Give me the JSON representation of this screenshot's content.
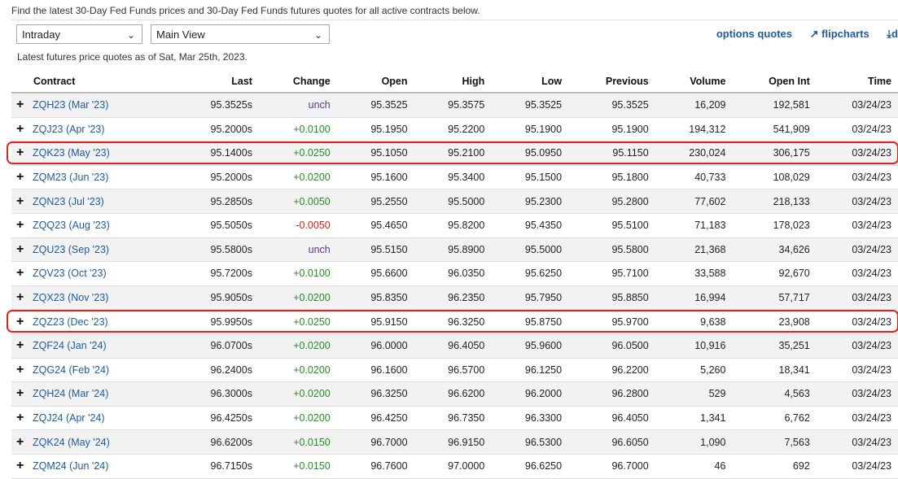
{
  "intro": "Find the latest 30-Day Fed Funds prices and 30-Day Fed Funds futures quotes for all active contracts below.",
  "filters": {
    "interval": "Intraday",
    "view": "Main View"
  },
  "links": {
    "options": "options quotes",
    "flipcharts": "flipcharts",
    "download": "d"
  },
  "asof": "Latest futures price quotes as of Sat, Mar 25th, 2023.",
  "columns": [
    "Contract",
    "Last",
    "Change",
    "Open",
    "High",
    "Low",
    "Previous",
    "Volume",
    "Open Int",
    "Time"
  ],
  "rows": [
    {
      "contract": "ZQH23 (Mar '23)",
      "last": "95.3525s",
      "change": "unch",
      "open": "95.3525",
      "high": "95.3575",
      "low": "95.3525",
      "previous": "95.3525",
      "volume": "16,209",
      "openint": "192,581",
      "time": "03/24/23"
    },
    {
      "contract": "ZQJ23 (Apr '23)",
      "last": "95.2000s",
      "change": "+0.0100",
      "open": "95.1950",
      "high": "95.2200",
      "low": "95.1900",
      "previous": "95.1900",
      "volume": "194,312",
      "openint": "541,909",
      "time": "03/24/23"
    },
    {
      "contract": "ZQK23 (May '23)",
      "last": "95.1400s",
      "change": "+0.0250",
      "open": "95.1050",
      "high": "95.2100",
      "low": "95.0950",
      "previous": "95.1150",
      "volume": "230,024",
      "openint": "306,175",
      "time": "03/24/23"
    },
    {
      "contract": "ZQM23 (Jun '23)",
      "last": "95.2000s",
      "change": "+0.0200",
      "open": "95.1600",
      "high": "95.3400",
      "low": "95.1500",
      "previous": "95.1800",
      "volume": "40,733",
      "openint": "108,029",
      "time": "03/24/23"
    },
    {
      "contract": "ZQN23 (Jul '23)",
      "last": "95.2850s",
      "change": "+0.0050",
      "open": "95.2550",
      "high": "95.5000",
      "low": "95.2300",
      "previous": "95.2800",
      "volume": "77,602",
      "openint": "218,133",
      "time": "03/24/23"
    },
    {
      "contract": "ZQQ23 (Aug '23)",
      "last": "95.5050s",
      "change": "-0.0050",
      "open": "95.4650",
      "high": "95.8200",
      "low": "95.4350",
      "previous": "95.5100",
      "volume": "71,183",
      "openint": "178,023",
      "time": "03/24/23"
    },
    {
      "contract": "ZQU23 (Sep '23)",
      "last": "95.5800s",
      "change": "unch",
      "open": "95.5150",
      "high": "95.8900",
      "low": "95.5000",
      "previous": "95.5800",
      "volume": "21,368",
      "openint": "34,626",
      "time": "03/24/23"
    },
    {
      "contract": "ZQV23 (Oct '23)",
      "last": "95.7200s",
      "change": "+0.0100",
      "open": "95.6600",
      "high": "96.0350",
      "low": "95.6250",
      "previous": "95.7100",
      "volume": "33,588",
      "openint": "92,670",
      "time": "03/24/23"
    },
    {
      "contract": "ZQX23 (Nov '23)",
      "last": "95.9050s",
      "change": "+0.0200",
      "open": "95.8350",
      "high": "96.2350",
      "low": "95.7950",
      "previous": "95.8850",
      "volume": "16,994",
      "openint": "57,717",
      "time": "03/24/23"
    },
    {
      "contract": "ZQZ23 (Dec '23)",
      "last": "95.9950s",
      "change": "+0.0250",
      "open": "95.9150",
      "high": "96.3250",
      "low": "95.8750",
      "previous": "95.9700",
      "volume": "9,638",
      "openint": "23,908",
      "time": "03/24/23"
    },
    {
      "contract": "ZQF24 (Jan '24)",
      "last": "96.0700s",
      "change": "+0.0200",
      "open": "96.0000",
      "high": "96.4050",
      "low": "95.9600",
      "previous": "96.0500",
      "volume": "10,916",
      "openint": "35,251",
      "time": "03/24/23"
    },
    {
      "contract": "ZQG24 (Feb '24)",
      "last": "96.2400s",
      "change": "+0.0200",
      "open": "96.1600",
      "high": "96.5700",
      "low": "96.1250",
      "previous": "96.2200",
      "volume": "5,260",
      "openint": "18,341",
      "time": "03/24/23"
    },
    {
      "contract": "ZQH24 (Mar '24)",
      "last": "96.3000s",
      "change": "+0.0200",
      "open": "96.3250",
      "high": "96.6200",
      "low": "96.2000",
      "previous": "96.2800",
      "volume": "529",
      "openint": "4,563",
      "time": "03/24/23"
    },
    {
      "contract": "ZQJ24 (Apr '24)",
      "last": "96.4250s",
      "change": "+0.0200",
      "open": "96.4250",
      "high": "96.7350",
      "low": "96.3300",
      "previous": "96.4050",
      "volume": "1,341",
      "openint": "6,762",
      "time": "03/24/23"
    },
    {
      "contract": "ZQK24 (May '24)",
      "last": "96.6200s",
      "change": "+0.0150",
      "open": "96.7000",
      "high": "96.9150",
      "low": "96.5300",
      "previous": "96.6050",
      "volume": "1,090",
      "openint": "7,563",
      "time": "03/24/23"
    },
    {
      "contract": "ZQM24 (Jun '24)",
      "last": "96.7150s",
      "change": "+0.0150",
      "open": "96.7600",
      "high": "97.0000",
      "low": "96.6250",
      "previous": "96.7000",
      "volume": "46",
      "openint": "692",
      "time": "03/24/23"
    }
  ],
  "highlighted_contracts": [
    "ZQK23 (May '23)",
    "ZQZ23 (Dec '23)"
  ],
  "colors": {
    "link": "#1f5a9b",
    "positive": "#2a8a2a",
    "negative": "#cc1e1e",
    "unchanged": "#5a3a8a",
    "highlight": "#dd2222"
  }
}
